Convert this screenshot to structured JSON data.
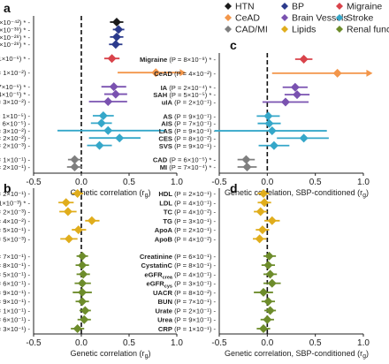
{
  "legend": [
    {
      "label": "HTN",
      "color": "#1a1a1a"
    },
    {
      "label": "BP",
      "color": "#2b3a8c"
    },
    {
      "label": "Migraine",
      "color": "#d9434b"
    },
    {
      "label": "CeAD",
      "color": "#f3964a"
    },
    {
      "label": "Brain Vessels",
      "color": "#7a52b0"
    },
    {
      "label": "Stroke",
      "color": "#35a7c9"
    },
    {
      "label": "CAD/MI",
      "color": "#7f7f7f"
    },
    {
      "label": "Lipids",
      "color": "#e0ad1c"
    },
    {
      "label": "Renal function",
      "color": "#6d8c2b"
    }
  ],
  "chart_data": [
    {
      "type": "scatter",
      "subtype": "forest",
      "panel": "a",
      "xlabel": "Genetic correlation (r",
      "xlabel_sub": "g",
      "xlim": [
        -0.5,
        1.0
      ],
      "xticks": [
        -0.5,
        0.0,
        0.5,
        1.0
      ],
      "xtick_labels": [
        "-0.5",
        "0.0",
        "0.5",
        "1.0"
      ],
      "rows": [
        {
          "name": "HTN",
          "p": "(P = 4×10⁻⁴²) * -",
          "value": 0.37,
          "lo": 0.3,
          "hi": 0.44,
          "color": "#1a1a1a",
          "shape": "diamond",
          "gap": false
        },
        {
          "name": "SBP",
          "p": "(P = 5×10⁻³⁹) * -",
          "value": 0.39,
          "lo": 0.33,
          "hi": 0.45,
          "color": "#2b3a8c",
          "shape": "diamond",
          "gap": false
        },
        {
          "name": "DBP",
          "p": "(P = 2×10⁻²⁸) * -",
          "value": 0.37,
          "lo": 0.3,
          "hi": 0.44,
          "color": "#2b3a8c",
          "shape": "diamond",
          "gap": false
        },
        {
          "name": "PP",
          "p": "(P = 1×10⁻²⁸) * -",
          "value": 0.36,
          "lo": 0.29,
          "hi": 0.43,
          "color": "#2b3a8c",
          "shape": "diamond",
          "gap": false
        },
        {
          "name": "Migraine",
          "p": "(P = 1×10⁻⁶) * -",
          "value": 0.32,
          "lo": 0.24,
          "hi": 0.4,
          "color": "#d9434b",
          "shape": "diamond",
          "gap": true
        },
        {
          "name": "CeAD",
          "p": "(P = 1×10⁻²) -",
          "value": 0.78,
          "lo": 0.38,
          "hi": 1.05,
          "color": "#f3964a",
          "shape": "diamond",
          "gap": true,
          "arrow": true
        },
        {
          "name": "IA",
          "p": "(P = 7×10⁻⁶) * -",
          "value": 0.34,
          "lo": 0.21,
          "hi": 0.47,
          "color": "#7a52b0",
          "shape": "diamond",
          "gap": true
        },
        {
          "name": "SAH",
          "p": "(P = 4×10⁻⁶) * -",
          "value": 0.36,
          "lo": 0.24,
          "hi": 0.48,
          "color": "#7a52b0",
          "shape": "diamond",
          "gap": false
        },
        {
          "name": "uIA",
          "p": "(P = 3×10⁻²) -",
          "value": 0.28,
          "lo": 0.08,
          "hi": 0.48,
          "color": "#7a52b0",
          "shape": "diamond",
          "gap": false
        },
        {
          "name": "AS",
          "p": "(P = 1×10⁻⁵) -",
          "value": 0.23,
          "lo": 0.12,
          "hi": 0.34,
          "color": "#35a7c9",
          "shape": "diamond",
          "gap": true
        },
        {
          "name": "AIS",
          "p": "(P = 6×10⁻⁵) -",
          "value": 0.21,
          "lo": 0.1,
          "hi": 0.32,
          "color": "#35a7c9",
          "shape": "diamond",
          "gap": false
        },
        {
          "name": "LAS",
          "p": "(P = 3×10⁻²) -",
          "value": 0.28,
          "lo": -0.25,
          "hi": 0.88,
          "color": "#35a7c9",
          "shape": "diamond",
          "gap": false
        },
        {
          "name": "CES",
          "p": "(P = 2×10⁻²) -",
          "value": 0.4,
          "lo": 0.08,
          "hi": 0.62,
          "color": "#35a7c9",
          "shape": "diamond",
          "gap": false
        },
        {
          "name": "SVS",
          "p": "(P = 2×10⁻³) -",
          "value": 0.19,
          "lo": 0.06,
          "hi": 0.32,
          "color": "#35a7c9",
          "shape": "diamond",
          "gap": false
        },
        {
          "name": "CAD",
          "p": "(P = 1×10⁻¹) -",
          "value": -0.07,
          "lo": -0.14,
          "hi": 0.01,
          "color": "#7f7f7f",
          "shape": "diamond",
          "gap": true
        },
        {
          "name": "MI",
          "p": "(P = 2×10⁻¹) -",
          "value": -0.07,
          "lo": -0.15,
          "hi": 0.01,
          "color": "#7f7f7f",
          "shape": "diamond",
          "gap": false
        }
      ]
    },
    {
      "type": "scatter",
      "subtype": "forest",
      "panel": "c",
      "xlabel": "Genetic correlation, SBP-conditioned (r",
      "xlabel_sub": "g",
      "xlim": [
        -0.5,
        1.0
      ],
      "xticks": [
        -0.5,
        0.0,
        0.5,
        1.0
      ],
      "xtick_labels": [
        "-0.5",
        "0.0",
        "0.5",
        "1.0"
      ],
      "rows": [
        {
          "name": "Migraine",
          "p": "(P = 8×10⁻⁸) * -",
          "value": 0.38,
          "lo": 0.29,
          "hi": 0.47,
          "color": "#d9434b",
          "shape": "diamond",
          "gap": true
        },
        {
          "name": "CeAD",
          "p": "(P = 4×10⁻²) -",
          "value": 0.73,
          "lo": 0.05,
          "hi": 1.05,
          "color": "#f3964a",
          "shape": "diamond",
          "gap": true,
          "arrow": true
        },
        {
          "name": "IA",
          "p": "(P = 2×10⁻⁴) * -",
          "value": 0.29,
          "lo": 0.16,
          "hi": 0.42,
          "color": "#7a52b0",
          "shape": "diamond",
          "gap": true
        },
        {
          "name": "SAH",
          "p": "(P = 5×10⁻⁵) * -",
          "value": 0.31,
          "lo": 0.18,
          "hi": 0.44,
          "color": "#7a52b0",
          "shape": "diamond",
          "gap": false
        },
        {
          "name": "uIA",
          "p": "(P = 2×10⁻¹) -",
          "value": 0.19,
          "lo": -0.05,
          "hi": 0.43,
          "color": "#7a52b0",
          "shape": "diamond",
          "gap": false
        },
        {
          "name": "AS",
          "p": "(P = 9×10⁻¹) -",
          "value": 0.01,
          "lo": -0.11,
          "hi": 0.13,
          "color": "#35a7c9",
          "shape": "diamond",
          "gap": true
        },
        {
          "name": "AIS",
          "p": "(P = 7×10⁻¹) -",
          "value": 0.02,
          "lo": -0.1,
          "hi": 0.14,
          "color": "#35a7c9",
          "shape": "diamond",
          "gap": false
        },
        {
          "name": "LAS",
          "p": "(P = 9×10⁻¹) -",
          "value": 0.05,
          "lo": -0.55,
          "hi": 0.62,
          "color": "#35a7c9",
          "shape": "diamond",
          "gap": false
        },
        {
          "name": "CES",
          "p": "(P = 8×10⁻²) -",
          "value": 0.38,
          "lo": 0.1,
          "hi": 0.64,
          "color": "#35a7c9",
          "shape": "diamond",
          "gap": false
        },
        {
          "name": "SVS",
          "p": "(P = 9×10⁻¹) -",
          "value": 0.07,
          "lo": -0.09,
          "hi": 0.23,
          "color": "#35a7c9",
          "shape": "diamond",
          "gap": false
        },
        {
          "name": "CAD",
          "p": "(P = 6×10⁻⁵) * -",
          "value": -0.22,
          "lo": -0.31,
          "hi": -0.13,
          "color": "#7f7f7f",
          "shape": "diamond",
          "gap": true
        },
        {
          "name": "MI",
          "p": "(P = 7×10⁻⁴) * -",
          "value": -0.21,
          "lo": -0.31,
          "hi": -0.11,
          "color": "#7f7f7f",
          "shape": "diamond",
          "gap": false
        }
      ]
    },
    {
      "type": "scatter",
      "subtype": "forest",
      "panel": "b",
      "xlabel": "Genetic correlation (r",
      "xlabel_sub": "g",
      "xlim": [
        -0.5,
        1.0
      ],
      "xticks": [
        -0.5,
        0.0,
        0.5,
        1.0
      ],
      "xtick_labels": [
        "-0.5",
        "0.0",
        "0.5",
        "1.0"
      ],
      "rows": [
        {
          "name": "HDL",
          "p": "(P = 2×10⁻¹) -",
          "value": -0.04,
          "lo": -0.1,
          "hi": 0.02,
          "color": "#e0ad1c",
          "shape": "diamond",
          "gap": false
        },
        {
          "name": "LDL",
          "p": "(P = 1×10⁻³) * -",
          "value": -0.16,
          "lo": -0.24,
          "hi": -0.08,
          "color": "#e0ad1c",
          "shape": "diamond",
          "gap": false
        },
        {
          "name": "TC",
          "p": "(P = 2×10⁻³) -",
          "value": -0.14,
          "lo": -0.23,
          "hi": -0.05,
          "color": "#e0ad1c",
          "shape": "diamond",
          "gap": false
        },
        {
          "name": "TG",
          "p": "(P = 4×10⁻²) -",
          "value": 0.11,
          "lo": 0.04,
          "hi": 0.19,
          "color": "#e0ad1c",
          "shape": "diamond",
          "gap": false
        },
        {
          "name": "ApoA",
          "p": "(P = 5×10⁻¹) -",
          "value": -0.03,
          "lo": -0.1,
          "hi": 0.05,
          "color": "#e0ad1c",
          "shape": "diamond",
          "gap": false
        },
        {
          "name": "ApoB",
          "p": "(P = 5×10⁻³) -",
          "value": -0.13,
          "lo": -0.22,
          "hi": -0.04,
          "color": "#e0ad1c",
          "shape": "diamond",
          "gap": false
        },
        {
          "name": "Creatinine",
          "p": "(P = 7×10⁻¹) -",
          "value": 0.01,
          "lo": -0.05,
          "hi": 0.07,
          "color": "#6d8c2b",
          "shape": "diamond",
          "gap": true
        },
        {
          "name": "CystatinC",
          "p": "(P = 8×10⁻¹) -",
          "value": 0.01,
          "lo": -0.06,
          "hi": 0.08,
          "color": "#6d8c2b",
          "shape": "diamond",
          "gap": false
        },
        {
          "name": "eGFR",
          "sub": "crea",
          "p": "(P = 5×10⁻¹) -",
          "value": 0.02,
          "lo": -0.05,
          "hi": 0.09,
          "color": "#6d8c2b",
          "shape": "diamond",
          "gap": false
        },
        {
          "name": "eGFR",
          "sub": "cys",
          "p": "(P = 6×10⁻¹) -",
          "value": 0.01,
          "lo": -0.07,
          "hi": 0.1,
          "color": "#6d8c2b",
          "shape": "diamond",
          "gap": false
        },
        {
          "name": "UACR",
          "p": "(P = 9×10⁻¹) -",
          "value": 0.01,
          "lo": -0.09,
          "hi": 0.11,
          "color": "#6d8c2b",
          "shape": "diamond",
          "gap": false
        },
        {
          "name": "BUN",
          "p": "(P = 9×10⁻¹) -",
          "value": 0.01,
          "lo": -0.06,
          "hi": 0.08,
          "color": "#6d8c2b",
          "shape": "diamond",
          "gap": false
        },
        {
          "name": "Urate",
          "p": "(P = 1×10⁻¹) -",
          "value": 0.04,
          "lo": -0.02,
          "hi": 0.1,
          "color": "#6d8c2b",
          "shape": "diamond",
          "gap": false
        },
        {
          "name": "Urea",
          "p": "(P = 6×10⁻¹) -",
          "value": 0.03,
          "lo": -0.04,
          "hi": 0.1,
          "color": "#6d8c2b",
          "shape": "diamond",
          "gap": false
        },
        {
          "name": "CRP",
          "p": "(P = 3×10⁻¹) -",
          "value": -0.04,
          "lo": -0.11,
          "hi": 0.03,
          "color": "#6d8c2b",
          "shape": "diamond",
          "gap": false
        }
      ]
    },
    {
      "type": "scatter",
      "subtype": "forest",
      "panel": "d",
      "xlabel": "Genetic correlation, SBP-conditioned (r",
      "xlabel_sub": "g",
      "xlim": [
        -0.5,
        1.0
      ],
      "xticks": [
        -0.5,
        0.0,
        0.5,
        1.0
      ],
      "xtick_labels": [
        "-0.5",
        "0.0",
        "0.5",
        "1.0"
      ],
      "rows": [
        {
          "name": "HDL",
          "p": "(P = 2×10⁻¹) -",
          "value": -0.04,
          "lo": -0.1,
          "hi": 0.02,
          "color": "#e0ad1c",
          "shape": "diamond",
          "gap": false
        },
        {
          "name": "LDL",
          "p": "(P = 4×10⁻¹) -",
          "value": -0.03,
          "lo": -0.1,
          "hi": 0.04,
          "color": "#e0ad1c",
          "shape": "diamond",
          "gap": false
        },
        {
          "name": "TC",
          "p": "(P = 4×10⁻²) -",
          "value": -0.07,
          "lo": -0.14,
          "hi": 0.0,
          "color": "#e0ad1c",
          "shape": "diamond",
          "gap": false
        },
        {
          "name": "TG",
          "p": "(P = 3×10⁻¹) -",
          "value": 0.05,
          "lo": -0.03,
          "hi": 0.13,
          "color": "#e0ad1c",
          "shape": "diamond",
          "gap": false
        },
        {
          "name": "ApoA",
          "p": "(P = 2×10⁻¹) -",
          "value": -0.05,
          "lo": -0.12,
          "hi": 0.02,
          "color": "#e0ad1c",
          "shape": "diamond",
          "gap": false
        },
        {
          "name": "ApoB",
          "p": "(P = 4×10⁻²) -",
          "value": -0.08,
          "lo": -0.15,
          "hi": -0.01,
          "color": "#e0ad1c",
          "shape": "diamond",
          "gap": false
        },
        {
          "name": "Creatinine",
          "p": "(P = 6×10⁻¹) -",
          "value": 0.02,
          "lo": -0.04,
          "hi": 0.09,
          "color": "#6d8c2b",
          "shape": "diamond",
          "gap": true
        },
        {
          "name": "CystatinC",
          "p": "(P = 8×10⁻¹) -",
          "value": 0.01,
          "lo": -0.06,
          "hi": 0.08,
          "color": "#6d8c2b",
          "shape": "diamond",
          "gap": false
        },
        {
          "name": "eGFR",
          "sub": "crea",
          "p": "(P = 4×10⁻¹) -",
          "value": 0.03,
          "lo": -0.04,
          "hi": 0.1,
          "color": "#6d8c2b",
          "shape": "diamond",
          "gap": false
        },
        {
          "name": "eGFR",
          "sub": "cys",
          "p": "(P = 3×10⁻¹) -",
          "value": 0.05,
          "lo": -0.04,
          "hi": 0.14,
          "color": "#6d8c2b",
          "shape": "diamond",
          "gap": false
        },
        {
          "name": "UACR",
          "p": "(P = 8×10⁻²) -",
          "value": -0.04,
          "lo": -0.14,
          "hi": 0.06,
          "color": "#6d8c2b",
          "shape": "diamond",
          "gap": false
        },
        {
          "name": "BUN",
          "p": "(P = 7×10⁻¹) -",
          "value": 0.01,
          "lo": -0.06,
          "hi": 0.08,
          "color": "#6d8c2b",
          "shape": "diamond",
          "gap": false
        },
        {
          "name": "Urate",
          "p": "(P = 2×10⁻¹) -",
          "value": 0.03,
          "lo": -0.03,
          "hi": 0.09,
          "color": "#6d8c2b",
          "shape": "diamond",
          "gap": false
        },
        {
          "name": "Urea",
          "p": "(P = 9×10⁻¹) -",
          "value": 0.0,
          "lo": -0.07,
          "hi": 0.07,
          "color": "#6d8c2b",
          "shape": "diamond",
          "gap": false
        },
        {
          "name": "CRP",
          "p": "(P = 1×10⁻¹) -",
          "value": -0.04,
          "lo": -0.11,
          "hi": 0.03,
          "color": "#6d8c2b",
          "shape": "diamond",
          "gap": false
        }
      ]
    }
  ]
}
